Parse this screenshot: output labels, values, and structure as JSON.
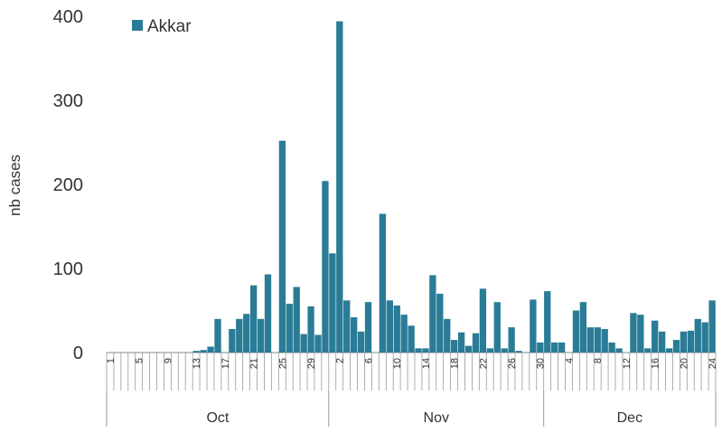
{
  "chart_data": {
    "type": "bar",
    "ylabel": "nb cases",
    "ylim": [
      0,
      400
    ],
    "yticks": [
      0,
      100,
      200,
      300,
      400
    ],
    "legend": {
      "position": "top-left",
      "entries": [
        "Akkar"
      ]
    },
    "colors": {
      "bar": "#2a7c96",
      "axis": "#888888",
      "text": "#333333"
    },
    "series": [
      {
        "name": "Akkar",
        "values": [
          0,
          0,
          0,
          0,
          0,
          0,
          0,
          0,
          0,
          0,
          0,
          0,
          2,
          3,
          7,
          40,
          0,
          28,
          40,
          46,
          80,
          40,
          93,
          0,
          252,
          58,
          78,
          22,
          55,
          21,
          204,
          118,
          394,
          62,
          42,
          25,
          60,
          0,
          165,
          62,
          56,
          45,
          32,
          5,
          5,
          92,
          70,
          40,
          15,
          24,
          8,
          23,
          76,
          5,
          60,
          5,
          30,
          2,
          0,
          63,
          12,
          73,
          12,
          12,
          0,
          50,
          60,
          30,
          30,
          28,
          12,
          5,
          0,
          47,
          45,
          5,
          38,
          25,
          5,
          15,
          25,
          26,
          40,
          36,
          62
        ]
      }
    ],
    "x_tick_labels": [
      {
        "index": 0,
        "label": "1"
      },
      {
        "index": 4,
        "label": "5"
      },
      {
        "index": 8,
        "label": "9"
      },
      {
        "index": 12,
        "label": "13"
      },
      {
        "index": 16,
        "label": "17"
      },
      {
        "index": 20,
        "label": "21"
      },
      {
        "index": 24,
        "label": "25"
      },
      {
        "index": 28,
        "label": "29"
      },
      {
        "index": 32,
        "label": "2"
      },
      {
        "index": 36,
        "label": "6"
      },
      {
        "index": 40,
        "label": "10"
      },
      {
        "index": 44,
        "label": "14"
      },
      {
        "index": 48,
        "label": "18"
      },
      {
        "index": 52,
        "label": "22"
      },
      {
        "index": 56,
        "label": "26"
      },
      {
        "index": 60,
        "label": "30"
      },
      {
        "index": 64,
        "label": "4"
      },
      {
        "index": 68,
        "label": "8"
      },
      {
        "index": 72,
        "label": "12"
      },
      {
        "index": 76,
        "label": "16"
      },
      {
        "index": 80,
        "label": "20"
      },
      {
        "index": 84,
        "label": "24"
      }
    ],
    "months": [
      {
        "label": "Oct",
        "start": 0,
        "end": 31
      },
      {
        "label": "Nov",
        "start": 31,
        "end": 61
      },
      {
        "label": "Dec",
        "start": 61,
        "end": 85
      }
    ]
  }
}
